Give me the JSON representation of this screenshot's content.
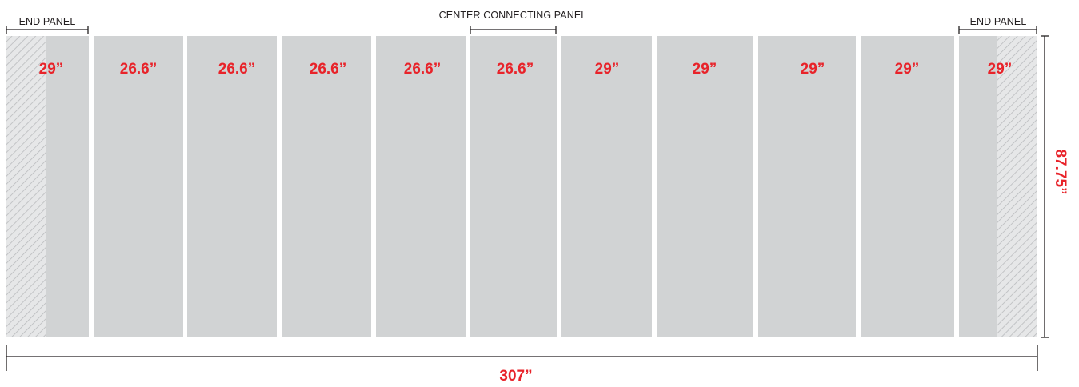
{
  "labels": {
    "end_panel_left": "END PANEL",
    "center_connecting_panel": "CENTER CONNECTING PANEL",
    "end_panel_right": "END PANEL"
  },
  "dimensions": {
    "total_width": "307”",
    "height": "87.75”"
  },
  "panels": [
    {
      "label": "29”",
      "type": "end"
    },
    {
      "label": "26.6”",
      "type": "standard"
    },
    {
      "label": "26.6”",
      "type": "standard"
    },
    {
      "label": "26.6”",
      "type": "standard"
    },
    {
      "label": "26.6”",
      "type": "standard"
    },
    {
      "label": "26.6”",
      "type": "center-connecting"
    },
    {
      "label": "29”",
      "type": "standard"
    },
    {
      "label": "29”",
      "type": "standard"
    },
    {
      "label": "29”",
      "type": "standard"
    },
    {
      "label": "29”",
      "type": "standard"
    },
    {
      "label": "29”",
      "type": "end"
    }
  ],
  "colors": {
    "panel_fill": "#d1d3d4",
    "label_red": "#e8232a",
    "line": "#231f20"
  }
}
